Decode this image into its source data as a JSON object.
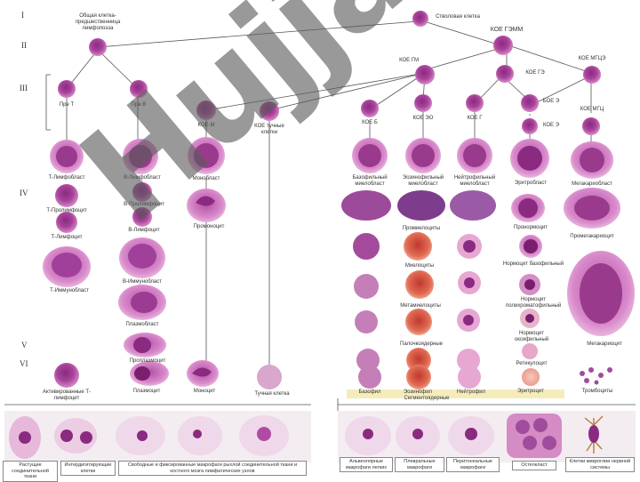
{
  "roman": [
    "I",
    "II",
    "III",
    "IV",
    "V",
    "VI"
  ],
  "labels": {
    "stem": "Стволовая клетка",
    "common_lympho": "Общая клетка-предшественница лимфопоэза",
    "koe_gemm": "КОЕ ГЭММ",
    "koe_gm": "КОЕ ГМ",
    "koe_ge": "КОЕ ГЭ",
    "koe_mgce": "КОЕ МГЦЭ",
    "pre_t": "Пре Т",
    "pre_b": "Пре В",
    "koe_m": "КОЕ-М",
    "koe_tuchn": "КОЕ тучные клетки",
    "koe_b": "КОЕ Б",
    "koe_eo": "КОЕ ЭО",
    "koe_g": "КОЕ Г",
    "bkoe_e": "БОЕ Э",
    "koe_e": "КОЕ Э",
    "koe_mgc": "КОЕ МГЦ",
    "t_lymphoblast": "Т-Лимфобласт",
    "t_prolymphocyte": "Т-Пролимфоцит",
    "t_lymphocyte": "Т-Лимфоцит",
    "t_immunoblast": "Т-Иммунобласт",
    "activated_t": "Активированные Т-лимфоцит",
    "b_lymphoblast": "В-Лимфобласт",
    "b_prolymphocyte": "В-Пролимфоцит",
    "b_lymphocyte": "В-Лимфоцит",
    "b_immunoblast": "В-Иммунобласт",
    "plasmablast": "Плазмобласт",
    "proplasmocyte": "Проплазмоцит",
    "plasmocyte": "Плазмоцит",
    "monoblast": "Монобласт",
    "promonocyte": "Промоноцит",
    "monocyte": "Моноцит",
    "mast_cell": "Тучная клетка",
    "basophil_myeloblast": "Базофильный миелобласт",
    "eosinophil_myeloblast": "Эозинофильный миелобласт",
    "neutrophil_myeloblast": "Нейтрофильный миелобласт",
    "erythroblast": "Эритробласт",
    "megakaryoblast": "Мегакариобласт",
    "promyelocytes": "Промиелоциты",
    "pronormocyte": "Пронормоцит",
    "promegakaryocyte": "Промегакариоцит",
    "myelocytes": "Миелоциты",
    "normo_baso": "Нормоцит базофильный",
    "normo_poly": "Нормоцит полихроматофильный",
    "metamyelocytes": "Метамиелоциты",
    "normo_oxy": "Нормоцит оксифильный",
    "megakaryocyte": "Мегакариоцит",
    "band": "Палочкоядерные",
    "reticulocyte": "Ретикулоцит",
    "segmented": "Сегментоядерные",
    "basophil": "Базофил",
    "eosinophil": "Эозинофил",
    "neutrophil": "Нейтрофил",
    "erythrocyte": "Эритроцит",
    "platelets": "Тромбоциты"
  },
  "bottom": {
    "c1": "Растущие соединительной ткани",
    "c2": "Интердигитирующие клетки",
    "c3": "Свободные и фиксированные макрофаги рыхлой соединительной ткани и костного мозга лимфатических узлов",
    "c4": "Альвеолярные макрофаги легких",
    "c5": "Плевральные макрофаги",
    "c6": "Перитонеальные макрофаги",
    "c7": "Остеокласт",
    "c8": "Клетки микроглии нервной системы"
  },
  "watermark": "Hujjat",
  "colors": {
    "cell_outer": "#c45aa8",
    "cell_inner": "#7a1f6e",
    "line": "#555555"
  }
}
